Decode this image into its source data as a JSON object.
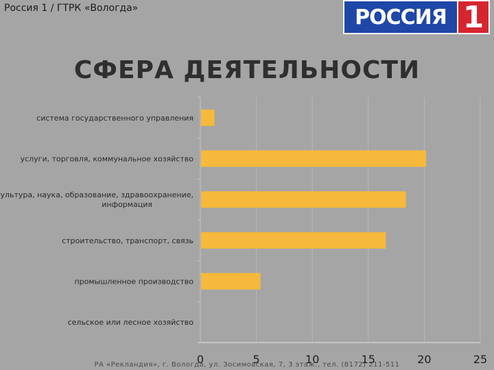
{
  "header": {
    "channel_title": "Россия 1 / ГТРК «Вологда»"
  },
  "logo": {
    "word": "РОССИЯ",
    "number": "1"
  },
  "slide": {
    "title": "СФЕРА ДЕЯТЕЛЬНОСТИ"
  },
  "footer": {
    "text": "РА «Рекландия», г. Вологда, ул. Зосимовская, 7, 3 этаж., тел. (8172) 211-511"
  },
  "colors": {
    "background": "#a5a5a5",
    "bar": "#f6b93b",
    "grid": "#b8b8b8",
    "axis": "#c4c4c4"
  },
  "chart_data": {
    "type": "bar",
    "orientation": "horizontal",
    "title": "",
    "xlabel": "",
    "ylabel": "",
    "categories": [
      "система государственного управления",
      "услуги, торговля, коммунальное хозяйство",
      "культура, наука, образование, здравоохранение, информация",
      "строительство, транспорт, связь",
      "промышленное производство",
      "сельское или лесное хозяйство"
    ],
    "category_lines": [
      [
        "система государственного управления"
      ],
      [
        "услуги, торговля, коммунальное хозяйство"
      ],
      [
        "культура, наука, образование, здравоохранение,",
        "информация"
      ],
      [
        "строительство, транспорт, связь"
      ],
      [
        "промышленное производство"
      ],
      [
        "сельское или лесное хозяйство"
      ]
    ],
    "values": [
      1.2,
      20.1,
      18.3,
      16.5,
      5.3,
      0
    ],
    "xlim": [
      0,
      25
    ],
    "xticks": [
      "0",
      "5",
      "10",
      "15",
      "20",
      "25"
    ],
    "grid": true,
    "legend": "none"
  }
}
